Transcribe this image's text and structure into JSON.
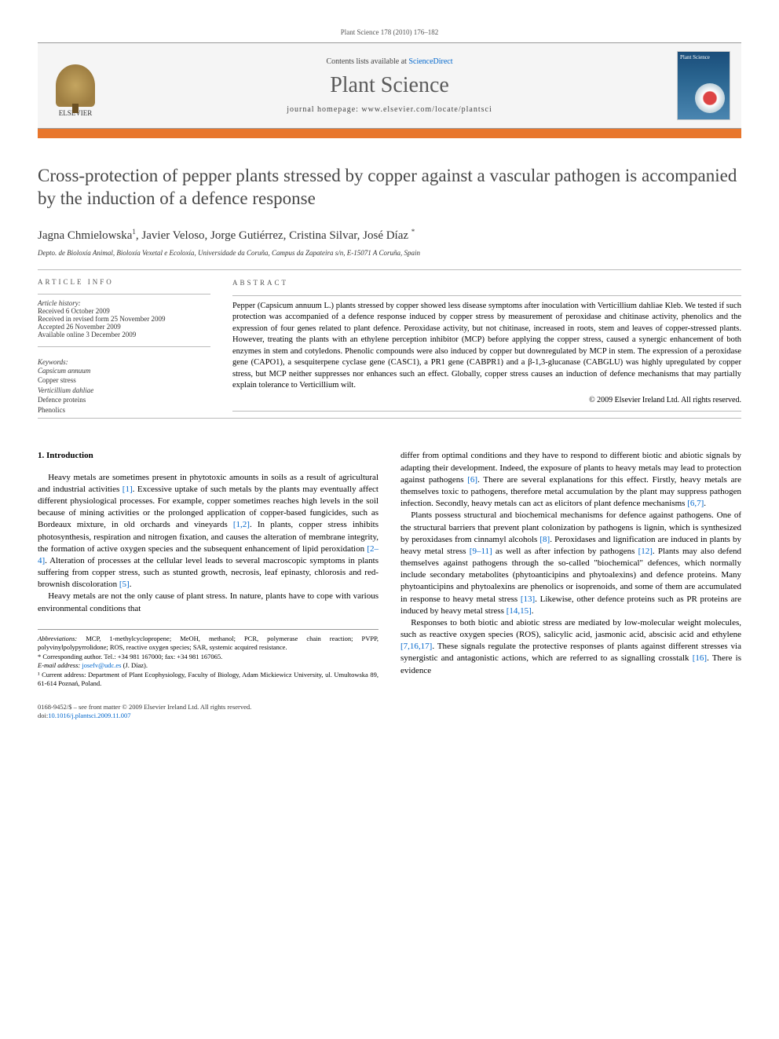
{
  "header": {
    "running_head": "Plant Science 178 (2010) 176–182",
    "contents_prefix": "Contents lists available at ",
    "contents_link": "ScienceDirect",
    "journal_name": "Plant Science",
    "homepage_label": "journal homepage: www.elsevier.com/locate/plantsci",
    "publisher_name": "ELSEVIER",
    "cover_text": "Plant Science"
  },
  "colors": {
    "accent_bar": "#e8762c",
    "link": "#0066cc",
    "title_gray": "#484848"
  },
  "article": {
    "title": "Cross-protection of pepper plants stressed by copper against a vascular pathogen is accompanied by the induction of a defence response",
    "authors_html": "Jagna Chmielowska¹, Javier Veloso, Jorge Gutiérrez, Cristina Silvar, José Díaz *",
    "authors": [
      {
        "name": "Jagna Chmielowska",
        "sup": "1"
      },
      {
        "name": "Javier Veloso",
        "sup": ""
      },
      {
        "name": "Jorge Gutiérrez",
        "sup": ""
      },
      {
        "name": "Cristina Silvar",
        "sup": ""
      },
      {
        "name": "José Díaz",
        "sup": "*"
      }
    ],
    "affiliation": "Depto. de Bioloxía Animal, Bioloxía Vexetal e Ecoloxía, Universidade da Coruña, Campus da Zapateira s/n, E-15071 A Coruña, Spain"
  },
  "info": {
    "heading": "ARTICLE INFO",
    "history_label": "Article history:",
    "history": [
      "Received 6 October 2009",
      "Received in revised form 25 November 2009",
      "Accepted 26 November 2009",
      "Available online 3 December 2009"
    ],
    "keywords_label": "Keywords:",
    "keywords": [
      {
        "text": "Capsicum annuum",
        "italic": true
      },
      {
        "text": "Copper stress",
        "italic": false
      },
      {
        "text": "Verticillium dahliae",
        "italic": true
      },
      {
        "text": "Defence proteins",
        "italic": false
      },
      {
        "text": "Phenolics",
        "italic": false
      }
    ]
  },
  "abstract": {
    "heading": "ABSTRACT",
    "text": "Pepper (Capsicum annuum L.) plants stressed by copper showed less disease symptoms after inoculation with Verticillium dahliae Kleb. We tested if such protection was accompanied of a defence response induced by copper stress by measurement of peroxidase and chitinase activity, phenolics and the expression of four genes related to plant defence. Peroxidase activity, but not chitinase, increased in roots, stem and leaves of copper-stressed plants. However, treating the plants with an ethylene perception inhibitor (MCP) before applying the copper stress, caused a synergic enhancement of both enzymes in stem and cotyledons. Phenolic compounds were also induced by copper but downregulated by MCP in stem. The expression of a peroxidase gene (CAPO1), a sesquiterpene cyclase gene (CASC1), a PR1 gene (CABPR1) and a β-1,3-glucanase (CABGLU) was highly upregulated by copper stress, but MCP neither suppresses nor enhances such an effect. Globally, copper stress causes an induction of defence mechanisms that may partially explain tolerance to Verticillium wilt.",
    "copyright": "© 2009 Elsevier Ireland Ltd. All rights reserved."
  },
  "body": {
    "section_head": "1. Introduction",
    "left_paragraphs": [
      "Heavy metals are sometimes present in phytotoxic amounts in soils as a result of agricultural and industrial activities [1]. Excessive uptake of such metals by the plants may eventually affect different physiological processes. For example, copper sometimes reaches high levels in the soil because of mining activities or the prolonged application of copper-based fungicides, such as Bordeaux mixture, in old orchards and vineyards [1,2]. In plants, copper stress inhibits photosynthesis, respiration and nitrogen fixation, and causes the alteration of membrane integrity, the formation of active oxygen species and the subsequent enhancement of lipid peroxidation [2–4]. Alteration of processes at the cellular level leads to several macroscopic symptoms in plants suffering from copper stress, such as stunted growth, necrosis, leaf epinasty, chlorosis and red-brownish discoloration [5].",
      "Heavy metals are not the only cause of plant stress. In nature, plants have to cope with various environmental conditions that"
    ],
    "right_paragraphs": [
      "differ from optimal conditions and they have to respond to different biotic and abiotic signals by adapting their development. Indeed, the exposure of plants to heavy metals may lead to protection against pathogens [6]. There are several explanations for this effect. Firstly, heavy metals are themselves toxic to pathogens, therefore metal accumulation by the plant may suppress pathogen infection. Secondly, heavy metals can act as elicitors of plant defence mechanisms [6,7].",
      "Plants possess structural and biochemical mechanisms for defence against pathogens. One of the structural barriers that prevent plant colonization by pathogens is lignin, which is synthesized by peroxidases from cinnamyl alcohols [8]. Peroxidases and lignification are induced in plants by heavy metal stress [9–11] as well as after infection by pathogens [12]. Plants may also defend themselves against pathogens through the so-called \"biochemical\" defences, which normally include secondary metabolites (phytoanticipins and phytoalexins) and defence proteins. Many phytoanticipins and phytoalexins are phenolics or isoprenoids, and some of them are accumulated in response to heavy metal stress [13]. Likewise, other defence proteins such as PR proteins are induced by heavy metal stress [14,15].",
      "Responses to both biotic and abiotic stress are mediated by low-molecular weight molecules, such as reactive oxygen species (ROS), salicylic acid, jasmonic acid, abscisic acid and ethylene [7,16,17]. These signals regulate the protective responses of plants against different stresses via synergistic and antagonistic actions, which are referred to as signalling crosstalk [16]. There is evidence"
    ]
  },
  "footnotes": {
    "abbrev_label": "Abbreviations:",
    "abbrev_text": " MCP, 1-methylcyclopropene; MeOH, methanol; PCR, polymerase chain reaction; PVPP, polyvinylpolypyrrolidone; ROS, reactive oxygen species; SAR, systemic acquired resistance.",
    "corr_label": "* Corresponding author. ",
    "corr_text": "Tel.: +34 981 167000; fax: +34 981 167065.",
    "email_label": "E-mail address: ",
    "email": "josefv@udc.es",
    "email_who": " (J. Díaz).",
    "note1_label": "¹ ",
    "note1_text": "Current address: Department of Plant Ecophysiology, Faculty of Biology, Adam Mickiewicz University, ul. Umultowska 89, 61-614 Poznań, Poland."
  },
  "footer": {
    "line1": "0168-9452/$ – see front matter © 2009 Elsevier Ireland Ltd. All rights reserved.",
    "doi_label": "doi:",
    "doi": "10.1016/j.plantsci.2009.11.007"
  }
}
